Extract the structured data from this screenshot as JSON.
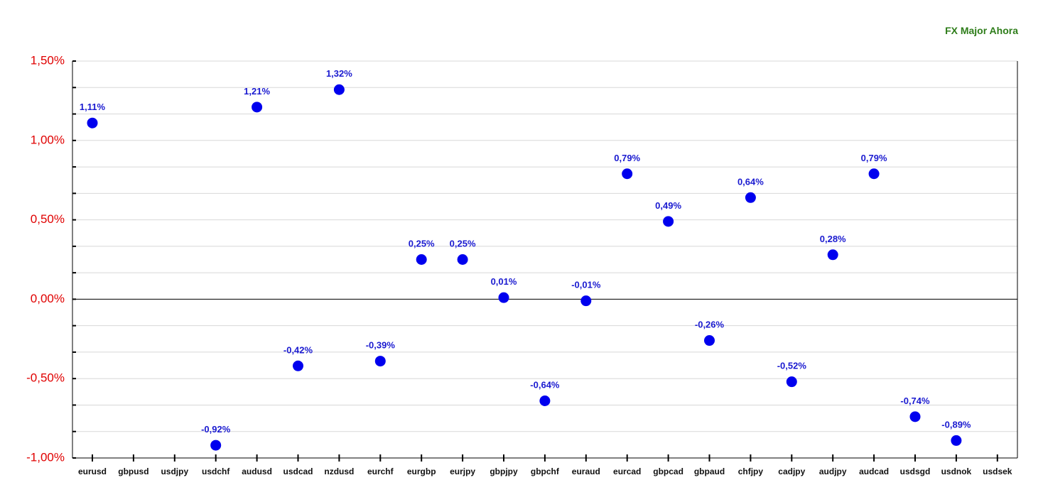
{
  "title": "FX Major Ahora",
  "chart_data": {
    "type": "scatter",
    "title": "FX Major Ahora",
    "xlabel": "",
    "ylabel": "",
    "categories": [
      "eurusd",
      "gbpusd",
      "usdjpy",
      "usdchf",
      "audusd",
      "usdcad",
      "nzdusd",
      "eurchf",
      "eurgbp",
      "eurjpy",
      "gbpjpy",
      "gbpchf",
      "euraud",
      "eurcad",
      "gbpcad",
      "gbpaud",
      "chfjpy",
      "cadjpy",
      "audjpy",
      "audcad",
      "usdsgd",
      "usdnok",
      "usdsek"
    ],
    "values": [
      1.11,
      null,
      null,
      -0.92,
      1.21,
      -0.42,
      1.32,
      -0.39,
      0.25,
      0.25,
      0.01,
      -0.64,
      -0.01,
      0.79,
      0.49,
      -0.26,
      0.64,
      -0.52,
      0.28,
      0.79,
      -0.74,
      -0.89,
      null
    ],
    "value_labels": [
      "1,11%",
      "",
      "",
      "-0,92%",
      "1,21%",
      "-0,42%",
      "1,32%",
      "-0,39%",
      "0,25%",
      "0,25%",
      "0,01%",
      "-0,64%",
      "-0,01%",
      "0,79%",
      "0,49%",
      "-0,26%",
      "0,64%",
      "-0,52%",
      "0,28%",
      "0,79%",
      "-0,74%",
      "-0,89%",
      ""
    ],
    "ylim": [
      -1.0,
      1.5
    ],
    "yticks": [
      1.5,
      1.0,
      0.5,
      0.0,
      -0.5,
      -1.0
    ],
    "ytick_labels": [
      "1,50%",
      "1,00%",
      "0,50%",
      "0,00%",
      "-0,50%",
      "-1,00%"
    ],
    "grid": true,
    "colors": {
      "marker": "#0000ee",
      "label": "#1a1ad0",
      "ytick": "#e00000",
      "title": "#2e7d1a"
    }
  }
}
